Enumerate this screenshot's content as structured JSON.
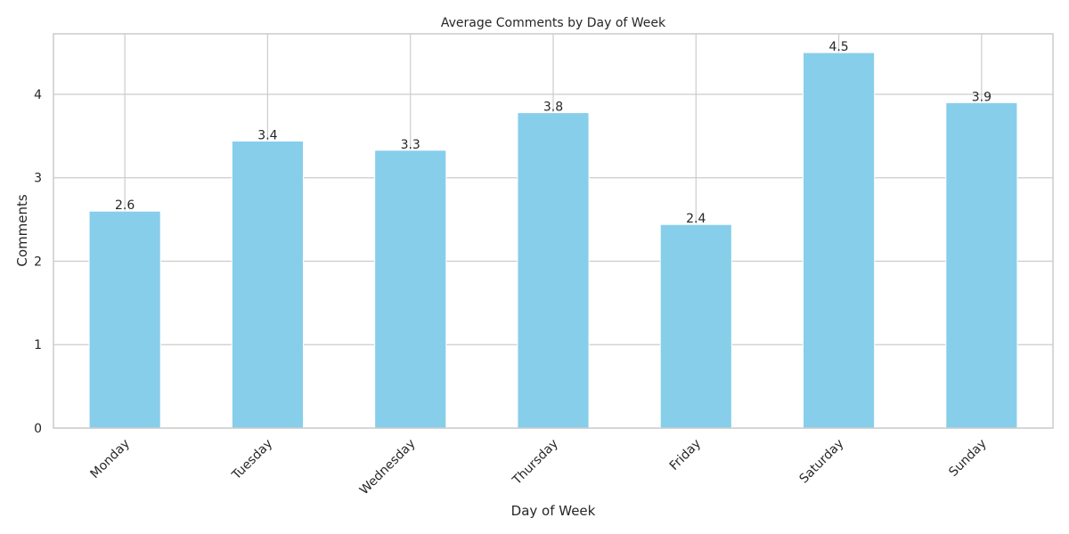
{
  "chart_data": {
    "type": "bar",
    "title": "Average Comments by Day of Week",
    "xlabel": "Day of Week",
    "ylabel": "Comments",
    "categories": [
      "Monday",
      "Tuesday",
      "Wednesday",
      "Thursday",
      "Friday",
      "Saturday",
      "Sunday"
    ],
    "values": [
      2.6,
      3.44,
      3.33,
      3.78,
      2.44,
      4.5,
      3.9
    ],
    "data_labels": [
      "2.6",
      "3.4",
      "3.3",
      "3.8",
      "2.4",
      "4.5",
      "3.9"
    ],
    "yticks": [
      0,
      1,
      2,
      3,
      4
    ],
    "ylim": [
      0,
      4.725
    ],
    "grid": true,
    "bar_color": "#87CEEB",
    "grid_color": "#cccccc",
    "frame_color": "#cccccc"
  }
}
